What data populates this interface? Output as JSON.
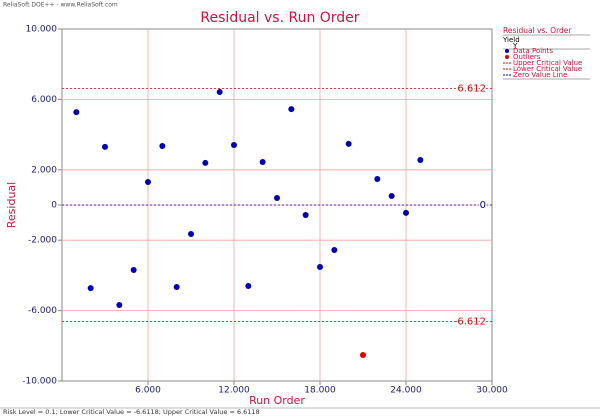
{
  "header": "ReliaSoft DOE++ - www.ReliaSoft.com",
  "footer": "Risk Level = 0.1; Lower Critical Value = -6.6118; Upper Critical Value = 6.6118",
  "chart_data": {
    "type": "scatter",
    "title": "Residual vs. Run Order",
    "xlabel": "Run Order",
    "ylabel": "Residual",
    "xlim": [
      0,
      30
    ],
    "ylim": [
      -10,
      10
    ],
    "xticks": [
      {
        "value": 6,
        "label": "6.000"
      },
      {
        "value": 12,
        "label": "12.000"
      },
      {
        "value": 18,
        "label": "18.000"
      },
      {
        "value": 24,
        "label": "24.000"
      },
      {
        "value": 30,
        "label": "30.000"
      }
    ],
    "yticks": [
      {
        "value": 10,
        "label": "10.000"
      },
      {
        "value": 6,
        "label": "6.000"
      },
      {
        "value": 2,
        "label": "2.000"
      },
      0,
      {
        "value": -2,
        "label": "-2.000"
      },
      {
        "value": -6,
        "label": "-6.000"
      },
      {
        "value": -10,
        "label": "-10.000"
      }
    ],
    "grid": true,
    "legend_title": "Residual vs. Order",
    "legend_group": "Yield",
    "legend_subgroup": "Y",
    "series": [
      {
        "name": "Data Points",
        "color": "#0000b4",
        "x": [
          1,
          2,
          3,
          4,
          5,
          6,
          7,
          8,
          9,
          10,
          11,
          12,
          13,
          14,
          15,
          16,
          17,
          18,
          19,
          20,
          22,
          23,
          24,
          25
        ],
        "values": [
          5.28,
          -4.72,
          3.3,
          -5.68,
          -3.69,
          1.31,
          3.35,
          -4.66,
          -1.65,
          2.39,
          6.42,
          3.41,
          -4.6,
          2.44,
          0.4,
          5.45,
          -0.57,
          -3.52,
          -2.56,
          3.47,
          1.48,
          0.51,
          -0.45,
          2.56
        ]
      },
      {
        "name": "Outliers",
        "color": "#e00000",
        "x": [
          21
        ],
        "values": [
          -8.52
        ]
      }
    ],
    "reference_lines": [
      {
        "name": "Upper Critical Value",
        "color": "#e00000",
        "value": 6.6118,
        "label": "6.612"
      },
      {
        "name": "Lower Critical Value",
        "color": "#e00000",
        "value": -6.6118,
        "label": "-6.612"
      },
      {
        "name": "Zero Value Line",
        "color": "#0000b4",
        "value": 0,
        "label": "0"
      }
    ]
  }
}
